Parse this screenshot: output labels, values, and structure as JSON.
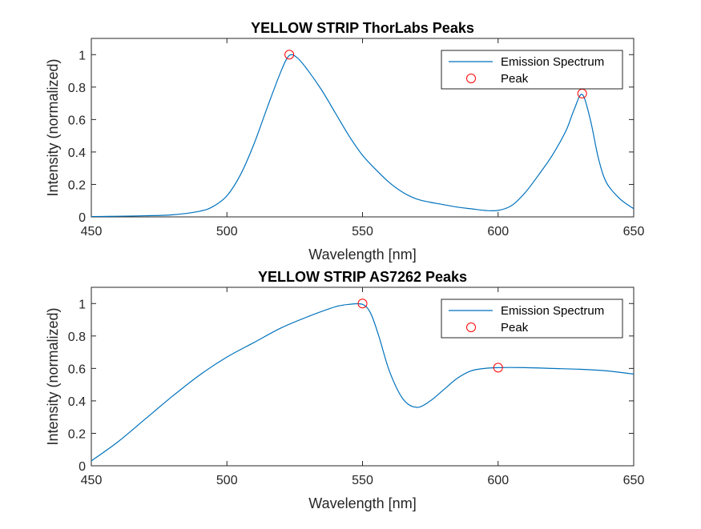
{
  "chart_data": [
    {
      "type": "line",
      "title": "YELLOW STRIP ThorLabs Peaks",
      "xlabel": "Wavelength [nm]",
      "ylabel": "Intensity (normalized)",
      "xlim": [
        450,
        650
      ],
      "ylim": [
        0,
        1.1
      ],
      "xticks": [
        450,
        500,
        550,
        600,
        650
      ],
      "yticks": [
        0,
        0.2,
        0.4,
        0.6,
        0.8,
        1
      ],
      "grid": false,
      "legend": {
        "placement": "top-right",
        "entries": [
          "Emission Spectrum",
          "Peak"
        ]
      },
      "series": [
        {
          "name": "Emission Spectrum",
          "color": "#0072BD",
          "x": [
            450,
            460,
            470,
            480,
            490,
            495,
            500,
            505,
            510,
            515,
            520,
            523,
            526,
            530,
            535,
            540,
            545,
            550,
            555,
            560,
            565,
            570,
            575,
            580,
            585,
            590,
            595,
            600,
            605,
            610,
            615,
            620,
            625,
            628,
            631,
            634,
            637,
            640,
            645,
            650
          ],
          "y": [
            0.002,
            0.004,
            0.007,
            0.013,
            0.035,
            0.065,
            0.13,
            0.26,
            0.45,
            0.68,
            0.9,
            0.995,
            0.98,
            0.9,
            0.78,
            0.64,
            0.5,
            0.38,
            0.29,
            0.21,
            0.15,
            0.11,
            0.09,
            0.075,
            0.06,
            0.05,
            0.04,
            0.04,
            0.07,
            0.15,
            0.26,
            0.38,
            0.53,
            0.66,
            0.755,
            0.6,
            0.36,
            0.21,
            0.11,
            0.05
          ]
        },
        {
          "name": "Peak",
          "color": "#FF0000",
          "marker": "circle",
          "x": [
            523,
            631
          ],
          "y": [
            1.0,
            0.76
          ]
        }
      ]
    },
    {
      "type": "line",
      "title": "YELLOW STRIP AS7262 Peaks",
      "xlabel": "Wavelength [nm]",
      "ylabel": "Intensity (normalized)",
      "xlim": [
        450,
        650
      ],
      "ylim": [
        0,
        1.1
      ],
      "xticks": [
        450,
        500,
        550,
        600,
        650
      ],
      "yticks": [
        0,
        0.2,
        0.4,
        0.6,
        0.8,
        1
      ],
      "grid": false,
      "legend": {
        "placement": "top-right",
        "entries": [
          "Emission Spectrum",
          "Peak"
        ]
      },
      "series": [
        {
          "name": "Emission Spectrum",
          "color": "#0072BD",
          "x": [
            450,
            460,
            470,
            480,
            490,
            500,
            510,
            520,
            530,
            540,
            545,
            550,
            553,
            556,
            560,
            565,
            570,
            575,
            580,
            585,
            590,
            595,
            600,
            610,
            620,
            630,
            640,
            650
          ],
          "y": [
            0.03,
            0.15,
            0.29,
            0.43,
            0.56,
            0.67,
            0.76,
            0.85,
            0.92,
            0.98,
            0.995,
            0.995,
            0.94,
            0.8,
            0.58,
            0.41,
            0.36,
            0.4,
            0.47,
            0.54,
            0.585,
            0.6,
            0.605,
            0.605,
            0.6,
            0.595,
            0.585,
            0.565
          ]
        },
        {
          "name": "Peak",
          "color": "#FF0000",
          "marker": "circle",
          "x": [
            550,
            600
          ],
          "y": [
            1.0,
            0.605
          ]
        }
      ]
    }
  ]
}
